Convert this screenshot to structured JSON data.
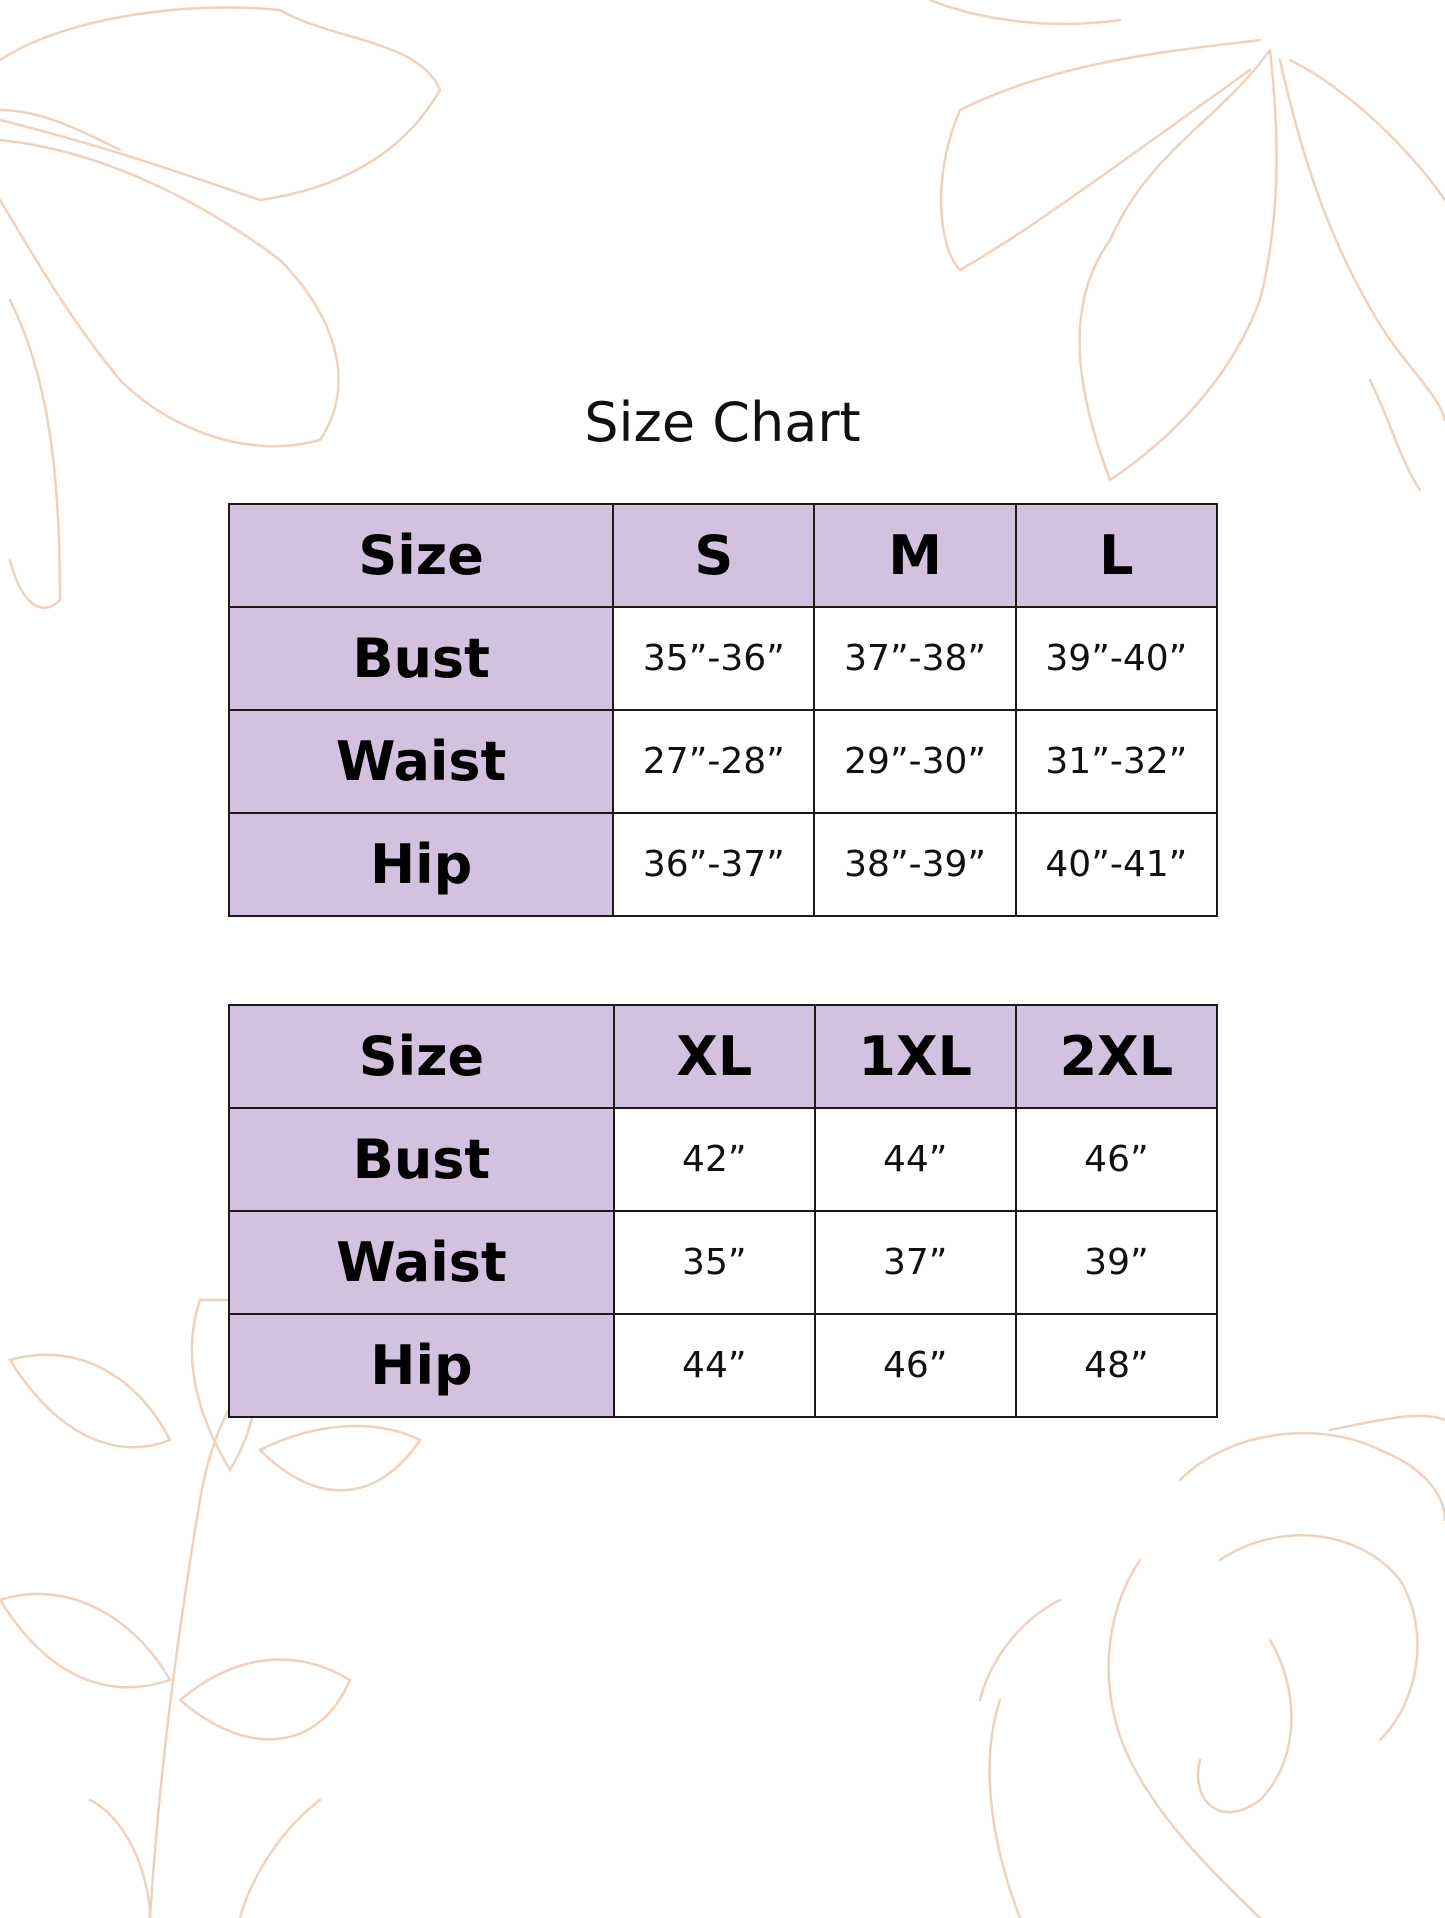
{
  "title": "Size Chart",
  "colors": {
    "header_fill": "#d2c2e0",
    "border": "#1a1a1a",
    "floral_line": "#ecd3c0"
  },
  "tables": [
    {
      "header": [
        "Size",
        "S",
        "M",
        "L"
      ],
      "rows": [
        {
          "label": "Bust",
          "values": [
            "35”-36”",
            "37”-38”",
            "39”-40”"
          ]
        },
        {
          "label": "Waist",
          "values": [
            "27”-28”",
            "29”-30”",
            "31”-32”"
          ]
        },
        {
          "label": "Hip",
          "values": [
            "36”-37”",
            "38”-39”",
            "40”-41”"
          ]
        }
      ]
    },
    {
      "header": [
        "Size",
        "XL",
        "1XL",
        "2XL"
      ],
      "rows": [
        {
          "label": "Bust",
          "values": [
            "42”",
            "44”",
            "46”"
          ]
        },
        {
          "label": "Waist",
          "values": [
            "35”",
            "37”",
            "39”"
          ]
        },
        {
          "label": "Hip",
          "values": [
            "44”",
            "46”",
            "48”"
          ]
        }
      ]
    }
  ]
}
